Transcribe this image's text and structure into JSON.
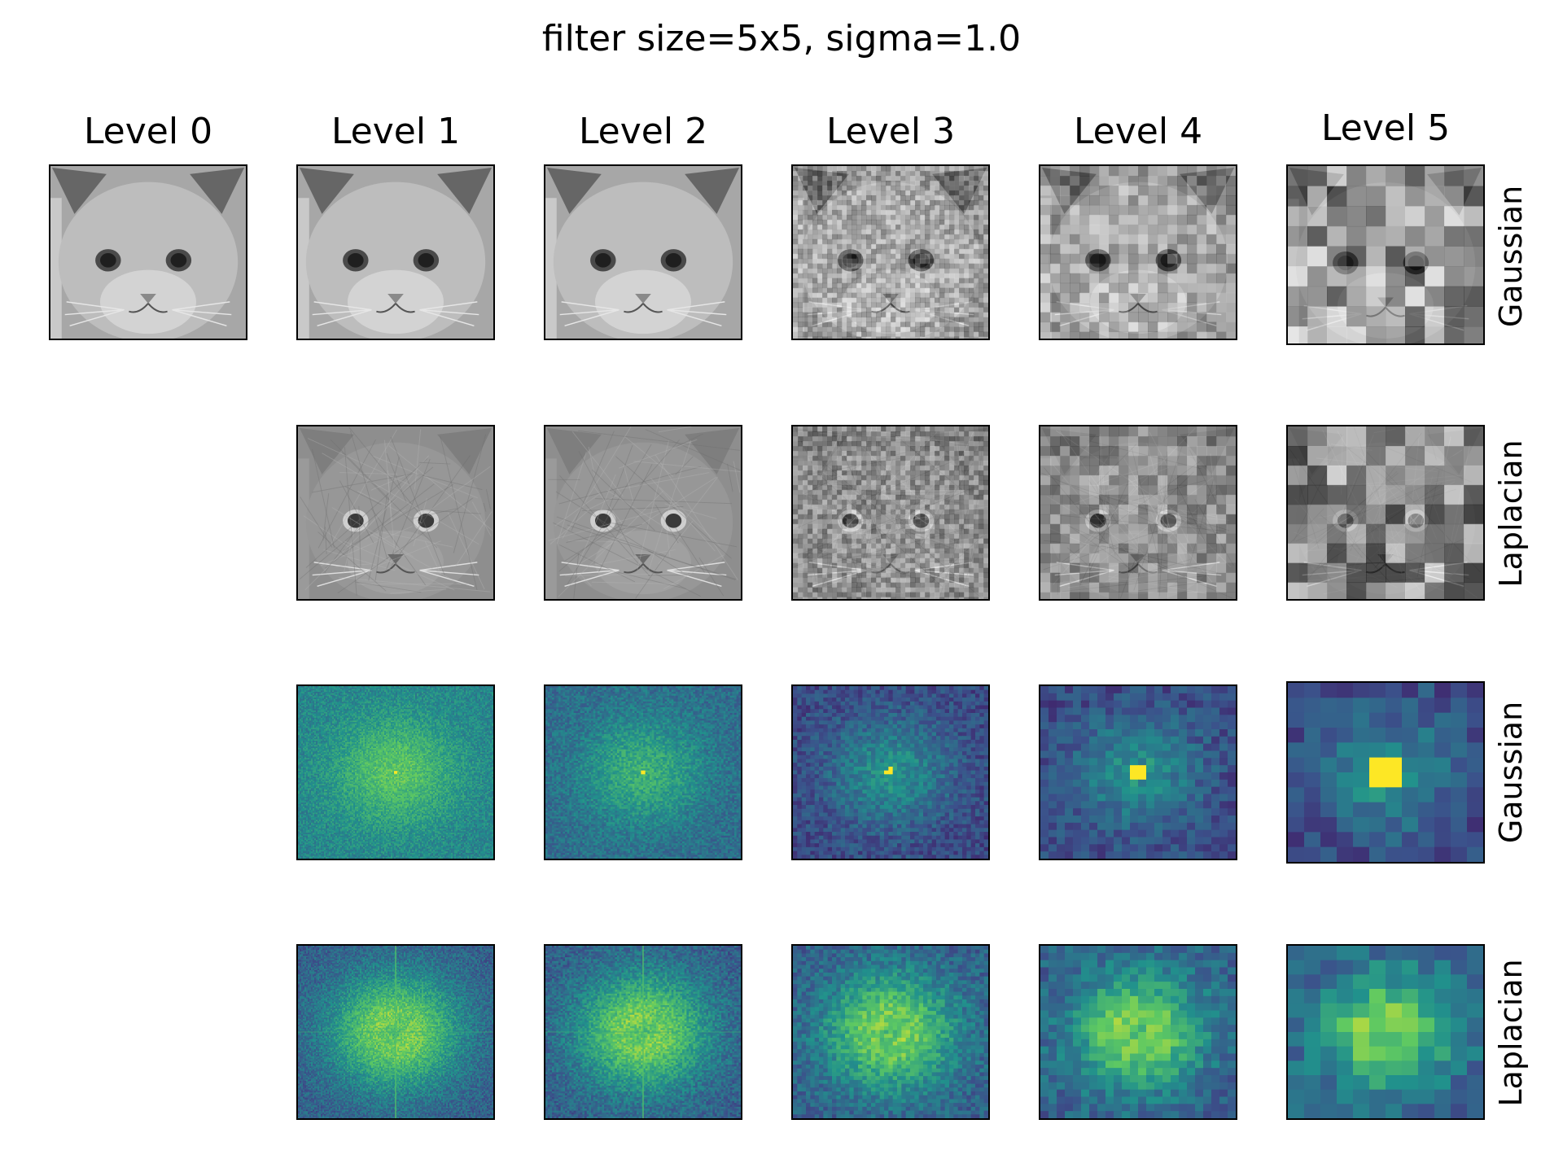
{
  "title": "filter size=5x5, sigma=1.0",
  "level_titles": [
    "Level 0",
    "Level 1",
    "Level 2",
    "Level 3",
    "Level 4",
    "Level 5"
  ],
  "row_labels": [
    "Gaussian",
    "Laplacian",
    "Gaussian",
    "Laplacian"
  ],
  "colormaps": {
    "gray": [
      "#000000",
      "#ffffff"
    ],
    "viridis": [
      "#440154",
      "#3b528b",
      "#21918c",
      "#5ec962",
      "#fde725"
    ]
  },
  "rows": [
    {
      "label": "Gaussian",
      "content": "cat-image",
      "colormap": "gray",
      "levels": [
        0,
        1,
        2,
        3,
        4,
        5
      ]
    },
    {
      "label": "Laplacian",
      "content": "cat-image",
      "colormap": "gray",
      "levels": [
        1,
        2,
        3,
        4,
        5
      ]
    },
    {
      "label": "Gaussian",
      "content": "fourier-spectrum",
      "colormap": "viridis",
      "levels": [
        1,
        2,
        3,
        4,
        5
      ]
    },
    {
      "label": "Laplacian",
      "content": "fourier-spectrum",
      "colormap": "viridis",
      "levels": [
        1,
        2,
        3,
        4,
        5
      ]
    }
  ]
}
